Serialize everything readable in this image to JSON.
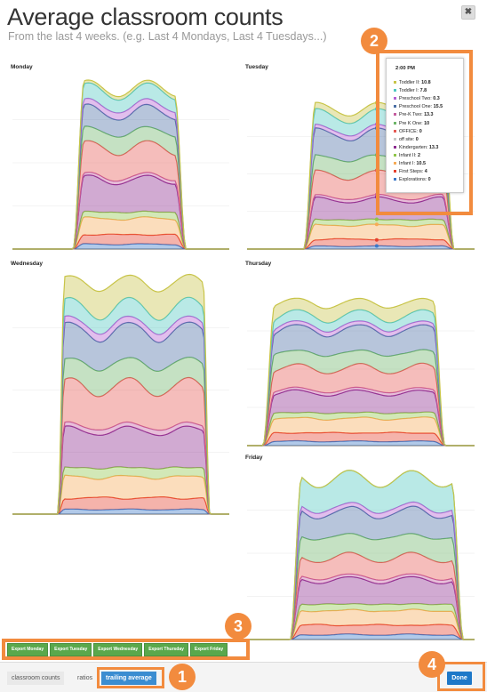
{
  "header": {
    "title": "Average classroom counts",
    "subtitle": "From the last 4 weeks. (e.g. Last 4 Mondays, Last 4 Tuesdays...)",
    "close_label": "✖"
  },
  "colors": {
    "Toddler II": "#c8c448",
    "Toddler I": "#4fc7c1",
    "Preschool Two": "#b45fd3",
    "Preschool One": "#4a6fa5",
    "Pre-K Two": "#c45c9f",
    "Pre K One": "#6db568",
    "OFFICE": "#e55a55",
    "off site": "#c7c7c7",
    "Kindergarten": "#8c2a8f",
    "Infant II": "#8fc64a",
    "Infant I": "#f6ab57",
    "First Steps": "#e6402e",
    "Explorations": "#3c78c8",
    "annotation": "#f28b3e",
    "export_button": "#5aa84c",
    "done_button": "#1e78c8"
  },
  "tooltip": {
    "time": "2:00 PM",
    "rows": [
      {
        "name": "Toddler II",
        "value": "10.8"
      },
      {
        "name": "Toddler I",
        "value": "7.8"
      },
      {
        "name": "Preschool Two",
        "value": "0.3"
      },
      {
        "name": "Preschool One",
        "value": "15.5"
      },
      {
        "name": "Pre-K Two",
        "value": "13.3"
      },
      {
        "name": "Pre K One",
        "value": "10"
      },
      {
        "name": "OFFICE",
        "value": "0"
      },
      {
        "name": "off site",
        "value": "0"
      },
      {
        "name": "Kindergarten",
        "value": "13.3"
      },
      {
        "name": "Infant II",
        "value": "2"
      },
      {
        "name": "Infant I",
        "value": "10.5"
      },
      {
        "name": "First Steps",
        "value": "4"
      },
      {
        "name": "Explorations",
        "value": "0"
      }
    ]
  },
  "chart_data": [
    {
      "type": "area",
      "title": "Monday",
      "stacked": true,
      "series_order_bottom_to_top": [
        "Explorations",
        "First Steps",
        "Infant I",
        "Infant II",
        "Kindergarten",
        "Pre-K Two",
        "OFFICE",
        "Pre K One",
        "Preschool One",
        "Preschool Two",
        "Toddler I",
        "Toddler II"
      ],
      "layers": [
        0.03,
        0.06,
        0.1,
        0.04,
        0.2,
        0.02,
        0.18,
        0.1,
        0.12,
        0.04,
        0.09,
        0.02
      ]
    },
    {
      "type": "area",
      "title": "Tuesday",
      "stacked": true,
      "series_order_bottom_to_top": [
        "Explorations",
        "First Steps",
        "Infant I",
        "Infant II",
        "Kindergarten",
        "Pre-K Two",
        "OFFICE",
        "Pre K One",
        "Preschool One",
        "Preschool Two",
        "Toddler I",
        "Toddler II"
      ],
      "layers": [
        0.02,
        0.05,
        0.1,
        0.04,
        0.14,
        0.02,
        0.16,
        0.12,
        0.17,
        0.03,
        0.1,
        0.05
      ]
    },
    {
      "type": "area",
      "title": "Wednesday",
      "stacked": true,
      "series_order_bottom_to_top": [
        "Explorations",
        "First Steps",
        "Infant I",
        "Infant II",
        "Kindergarten",
        "Pre-K Two",
        "OFFICE",
        "Pre K One",
        "Preschool One",
        "Preschool Two",
        "Toddler I",
        "Toddler II"
      ],
      "layers": [
        0.02,
        0.05,
        0.09,
        0.04,
        0.16,
        0.02,
        0.17,
        0.1,
        0.14,
        0.03,
        0.07,
        0.11
      ]
    },
    {
      "type": "area",
      "title": "Thursday",
      "stacked": true,
      "series_order_bottom_to_top": [
        "Explorations",
        "First Steps",
        "Infant I",
        "Infant II",
        "Kindergarten",
        "Pre-K Two",
        "OFFICE",
        "Pre K One",
        "Preschool One",
        "Preschool Two",
        "Toddler I",
        "Toddler II"
      ],
      "layers": [
        0.03,
        0.06,
        0.1,
        0.04,
        0.14,
        0.02,
        0.15,
        0.11,
        0.16,
        0.03,
        0.07,
        0.09
      ]
    },
    {
      "type": "area",
      "title": "Friday",
      "stacked": true,
      "series_order_bottom_to_top": [
        "Explorations",
        "First Steps",
        "Infant I",
        "Infant II",
        "Kindergarten",
        "Pre-K Two",
        "OFFICE",
        "Pre K One",
        "Preschool One",
        "Preschool Two",
        "Toddler I",
        "Toddler II"
      ],
      "layers": [
        0.03,
        0.06,
        0.09,
        0.04,
        0.15,
        0.02,
        0.12,
        0.13,
        0.15,
        0.03,
        0.18,
        0.0
      ]
    }
  ],
  "annotations": {
    "badge_1": "1",
    "badge_2": "2",
    "badge_3": "3",
    "badge_4": "4"
  },
  "export_buttons": [
    "Export Monday",
    "Export Tuesday",
    "Export Wednesday",
    "Export Thursday",
    "Export Friday"
  ],
  "footer": {
    "tab_counts": "classroom counts",
    "tab_ratios": "ratios",
    "tab_trailing": "trailing average",
    "done_label": "Done"
  }
}
